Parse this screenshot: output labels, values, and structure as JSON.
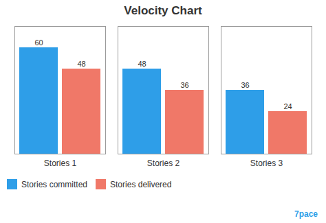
{
  "chart_data": {
    "type": "bar",
    "title": "Velocity Chart",
    "categories": [
      "Stories 1",
      "Stories 2",
      "Stories 3"
    ],
    "series": [
      {
        "name": "Stories committed",
        "color": "#2E9EE8",
        "values": [
          60,
          48,
          36
        ]
      },
      {
        "name": "Stories delivered",
        "color": "#F07868",
        "values": [
          48,
          36,
          24
        ]
      }
    ],
    "ylim": [
      0,
      72
    ],
    "yticks": [],
    "grid": false,
    "legend": "bottom",
    "data_labels": true,
    "tick_labels": "x",
    "annotations": [
      "7pace"
    ]
  }
}
